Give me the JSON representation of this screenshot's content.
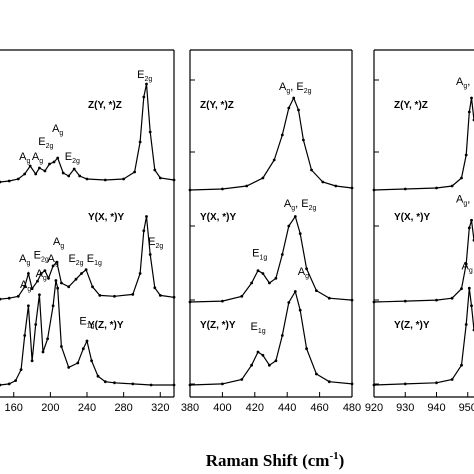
{
  "chart_data": {
    "type": "line",
    "xlabel": "Raman Shift (cm",
    "xlabel_superscript": "-1",
    "xlabel_close": ")",
    "line_color": "#000000",
    "panels": [
      {
        "xlim": [
          145,
          335
        ],
        "xticks": [
          160,
          200,
          240,
          280,
          320
        ],
        "trace_labels": [
          "Z(Y, *)Z",
          "Y(X, *)Y",
          "Y(Z, *)Y"
        ],
        "traces": [
          {
            "name": "Z(Y, *)Z",
            "baseline": 0.08,
            "x": [
              145,
              155,
              165,
              172,
              178,
              184,
              188,
              194,
              199,
              204,
              208,
              214,
              220,
              226,
              232,
              240,
              260,
              280,
              292,
              298,
              302,
              305,
              309,
              314,
              320,
              335
            ],
            "y": [
              0.0,
              0.01,
              0.03,
              0.08,
              0.16,
              0.08,
              0.14,
              0.11,
              0.18,
              0.2,
              0.24,
              0.09,
              0.06,
              0.13,
              0.06,
              0.03,
              0.02,
              0.03,
              0.1,
              0.4,
              0.85,
              0.98,
              0.5,
              0.12,
              0.04,
              0.02
            ]
          },
          {
            "name": "Y(X, *)Y",
            "baseline": 0.0,
            "x": [
              145,
              155,
              165,
              172,
              176,
              180,
              186,
              190,
              194,
              198,
              203,
              207,
              212,
              220,
              228,
              234,
              239,
              246,
              254,
              270,
              290,
              298,
              302,
              305,
              309,
              314,
              320,
              335
            ],
            "y": [
              0.03,
              0.04,
              0.06,
              0.16,
              0.3,
              0.14,
              0.22,
              0.3,
              0.33,
              0.25,
              0.38,
              0.42,
              0.2,
              0.16,
              0.24,
              0.3,
              0.34,
              0.16,
              0.07,
              0.06,
              0.08,
              0.3,
              0.75,
              0.9,
              0.5,
              0.15,
              0.07,
              0.05
            ]
          },
          {
            "name": "Y(Z, *)Y",
            "baseline": 0.0,
            "x": [
              145,
              155,
              162,
              168,
              172,
              176,
              180,
              184,
              188,
              192,
              197,
              203,
              206,
              208,
              212,
              220,
              230,
              236,
              240,
              245,
              252,
              260,
              270,
              290,
              310,
              335
            ],
            "y": [
              0.0,
              0.01,
              0.04,
              0.14,
              0.45,
              0.72,
              0.22,
              0.55,
              0.82,
              0.3,
              0.42,
              0.72,
              0.95,
              0.88,
              0.35,
              0.16,
              0.2,
              0.33,
              0.4,
              0.22,
              0.08,
              0.03,
              0.02,
              0.01,
              0.0,
              0.0
            ]
          }
        ],
        "peak_labels": [
          {
            "trace": 0,
            "x": 172,
            "y": 0.3,
            "base": "A",
            "sub": "g"
          },
          {
            "trace": 0,
            "x": 186,
            "y": 0.3,
            "base": "A",
            "sub": "g"
          },
          {
            "trace": 0,
            "x": 195,
            "y": 0.45,
            "base": "E",
            "sub": "2g"
          },
          {
            "trace": 0,
            "x": 208,
            "y": 0.58,
            "base": "A",
            "sub": "g"
          },
          {
            "trace": 0,
            "x": 224,
            "y": 0.3,
            "base": "E",
            "sub": "2g"
          },
          {
            "trace": 0,
            "x": 303,
            "y": 1.12,
            "base": "E",
            "sub": "2g"
          },
          {
            "trace": 1,
            "x": 172,
            "y": 0.42,
            "base": "A",
            "sub": "g"
          },
          {
            "trace": 1,
            "x": 190,
            "y": 0.46,
            "base": "E",
            "sub": "2g"
          },
          {
            "trace": 1,
            "x": 209,
            "y": 0.6,
            "base": "A",
            "sub": "g"
          },
          {
            "trace": 1,
            "x": 228,
            "y": 0.42,
            "base": "E",
            "sub": "2g"
          },
          {
            "trace": 1,
            "x": 248,
            "y": 0.42,
            "base": "E",
            "sub": "1g"
          },
          {
            "trace": 1,
            "x": 315,
            "y": 0.6,
            "base": "E",
            "sub": "2g"
          },
          {
            "trace": 2,
            "x": 173,
            "y": 0.88,
            "base": "A",
            "sub": "g"
          },
          {
            "trace": 2,
            "x": 190,
            "y": 0.98,
            "base": "A",
            "sub": "g"
          },
          {
            "trace": 2,
            "x": 203,
            "y": 1.12,
            "base": "A",
            "sub": "g"
          },
          {
            "trace": 2,
            "x": 240,
            "y": 0.55,
            "base": "E",
            "sub": "1g"
          }
        ]
      },
      {
        "xlim": [
          380,
          480
        ],
        "xticks": [
          380,
          400,
          420,
          440,
          460,
          480
        ],
        "trace_labels": [
          "Z(Y, *)Z",
          "Y(X, *)Y",
          "Y(Z, *)Y"
        ],
        "traces": [
          {
            "name": "Z(Y, *)Z",
            "baseline": 0.0,
            "x": [
              380,
              400,
              415,
              425,
              432,
              437,
              441,
              444,
              447,
              450,
              455,
              462,
              470,
              480
            ],
            "y": [
              0.0,
              0.01,
              0.04,
              0.12,
              0.3,
              0.55,
              0.82,
              0.92,
              0.8,
              0.5,
              0.2,
              0.08,
              0.04,
              0.02
            ]
          },
          {
            "name": "Y(X, *)Y",
            "baseline": 0.0,
            "x": [
              380,
              400,
              412,
              418,
              422,
              425,
              429,
              433,
              437,
              441,
              445,
              448,
              452,
              458,
              466,
              480
            ],
            "y": [
              0.0,
              0.01,
              0.06,
              0.2,
              0.33,
              0.3,
              0.2,
              0.25,
              0.5,
              0.8,
              0.9,
              0.72,
              0.35,
              0.12,
              0.04,
              0.02
            ]
          },
          {
            "name": "Y(Z, *)Y",
            "baseline": 0.0,
            "x": [
              380,
              400,
              412,
              418,
              422,
              425,
              429,
              433,
              437,
              441,
              445,
              448,
              452,
              458,
              466,
              480
            ],
            "y": [
              0.0,
              0.01,
              0.05,
              0.18,
              0.3,
              0.27,
              0.18,
              0.22,
              0.45,
              0.75,
              0.85,
              0.68,
              0.33,
              0.1,
              0.03,
              0.01
            ]
          }
        ],
        "peak_labels": [
          {
            "trace": 0,
            "x": 445,
            "y": 1.0,
            "base": "A",
            "sub": "g",
            "suffix": ", E",
            "suffix_sub": "2g"
          },
          {
            "trace": 1,
            "x": 423,
            "y": 0.48,
            "base": "E",
            "sub": "1g"
          },
          {
            "trace": 1,
            "x": 448,
            "y": 1.0,
            "base": "A",
            "sub": "g",
            "suffix": ", E",
            "suffix_sub": "2g"
          },
          {
            "trace": 2,
            "x": 422,
            "y": 0.5,
            "base": "E",
            "sub": "1g"
          },
          {
            "trace": 2,
            "x": 450,
            "y": 1.0,
            "base": "A",
            "sub": "g"
          }
        ]
      },
      {
        "xlim": [
          920,
          952
        ],
        "xticks": [
          920,
          930,
          940,
          950
        ],
        "xtick_labels": [
          "920",
          "930",
          "940",
          "950"
        ],
        "trace_labels": [
          "Z(Y, *)Z",
          "Y(X, *)Y",
          "Y(Z, *)Y"
        ],
        "traces": [
          {
            "name": "Z(Y, *)Z",
            "baseline": 0.0,
            "x": [
              920,
              930,
              940,
              945,
              948,
              949.5,
              950.5,
              951.2,
              952
            ],
            "y": [
              0.0,
              0.01,
              0.02,
              0.04,
              0.12,
              0.35,
              0.78,
              0.92,
              0.7
            ]
          },
          {
            "name": "Y(X, *)Y",
            "baseline": 0.0,
            "x": [
              920,
              930,
              940,
              945,
              948,
              949.5,
              950.5,
              951.2,
              952
            ],
            "y": [
              0.0,
              0.01,
              0.02,
              0.04,
              0.14,
              0.4,
              0.78,
              0.86,
              0.65
            ]
          },
          {
            "name": "Y(Z, *)Y",
            "baseline": 0.0,
            "x": [
              920,
              930,
              940,
              945,
              948,
              949.5,
              950.5,
              951.2,
              952
            ],
            "y": [
              0.0,
              0.01,
              0.02,
              0.05,
              0.18,
              0.55,
              0.88,
              0.72,
              0.5
            ]
          }
        ],
        "peak_labels": [
          {
            "trace": 0,
            "x": 950.2,
            "y": 1.05,
            "base": "A",
            "sub": "g",
            "suffix": ", E",
            "suffix_sub": ""
          },
          {
            "trace": 1,
            "x": 950.2,
            "y": 1.05,
            "base": "A",
            "sub": "g",
            "suffix": ", E",
            "suffix_sub": ""
          },
          {
            "trace": 2,
            "x": 949.8,
            "y": 1.05,
            "base": "A",
            "sub": "g"
          }
        ]
      }
    ]
  }
}
